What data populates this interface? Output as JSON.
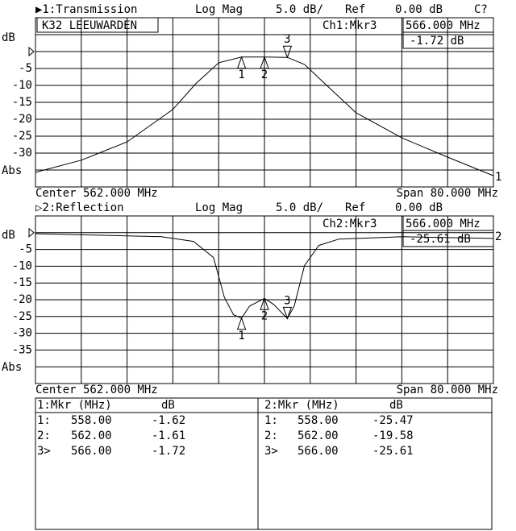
{
  "chart_data": [
    {
      "type": "line",
      "title": "▶1:Transmission",
      "format": "Log Mag",
      "scale": "5.0 dB/",
      "ref_label": "Ref",
      "ref_text": "0.00 dB",
      "status": "C?",
      "y_unit": "dB",
      "y_abs": "Abs",
      "ref": 0,
      "note": "K32 LEEUWARDEN",
      "active_marker": "Ch1:Mkr3",
      "active_freq": "566.000 MHz",
      "active_value": "-1.72 dB",
      "center": "Center 562.000 MHz",
      "span": "Span 80.000 MHz",
      "trace_label": "1",
      "color": "#000000",
      "x": [
        522,
        530,
        538,
        546,
        550,
        554,
        558,
        562,
        566,
        569,
        572,
        578,
        586,
        594,
        602
      ],
      "values": [
        -35.7,
        -32.1,
        -26.7,
        -17.1,
        -9.5,
        -3.3,
        -1.62,
        -1.61,
        -1.72,
        -3.8,
        -8.6,
        -18.1,
        -25.5,
        -31.2,
        -36.7
      ],
      "markers": {
        "labels": [
          "1",
          "2",
          "3"
        ],
        "x": [
          558,
          562,
          566
        ],
        "values": [
          -1.62,
          -1.61,
          -1.72
        ]
      },
      "xlim": [
        522,
        602
      ],
      "ylim": [
        -40,
        10
      ],
      "yticks": [
        -5,
        -10,
        -15,
        -20,
        -25,
        -30
      ]
    },
    {
      "type": "line",
      "title": "▷2:Reflection",
      "format": "Log Mag",
      "scale": "5.0 dB/",
      "ref_label": "Ref",
      "ref_text": "0.00 dB",
      "y_unit": "dB",
      "y_abs": "Abs",
      "ref": 0,
      "active_marker": "Ch2:Mkr3",
      "active_freq": "566.000 MHz",
      "active_value": "-25.61 dB",
      "center": "Center 562.000 MHz",
      "span": "Span 80.000 MHz",
      "trace_label": "2",
      "color": "#000000",
      "x": [
        522,
        544,
        549.6,
        553.1,
        555,
        556.6,
        558,
        559.4,
        562,
        563.6,
        566,
        567.2,
        569,
        571.5,
        575,
        586.2,
        602
      ],
      "values": [
        -0.3,
        -1.2,
        -2.6,
        -7.4,
        -19.3,
        -24.5,
        -25.47,
        -21.9,
        -19.58,
        -21.4,
        -25.61,
        -21.9,
        -9.8,
        -3.8,
        -1.9,
        -1.2,
        -1.7
      ],
      "markers": {
        "labels": [
          "1",
          "2",
          "3"
        ],
        "x": [
          558,
          562,
          566
        ],
        "values": [
          -25.47,
          -19.58,
          -25.61
        ]
      },
      "xlim": [
        522,
        602
      ],
      "ylim": [
        -45,
        5
      ],
      "yticks": [
        -5,
        -10,
        -15,
        -20,
        -25,
        -30,
        -35
      ]
    }
  ],
  "marker_table": [
    {
      "header": [
        "1:Mkr (MHz)",
        "dB"
      ],
      "rows": [
        [
          "1:",
          "558.00",
          "-1.62"
        ],
        [
          "2:",
          "562.00",
          "-1.61"
        ],
        [
          "3>",
          "566.00",
          "-1.72"
        ]
      ]
    },
    {
      "header": [
        "2:Mkr (MHz)",
        "dB"
      ],
      "rows": [
        [
          "1:",
          "558.00",
          "-25.47"
        ],
        [
          "2:",
          "562.00",
          "-19.58"
        ],
        [
          "3>",
          "566.00",
          "-25.61"
        ]
      ]
    }
  ]
}
